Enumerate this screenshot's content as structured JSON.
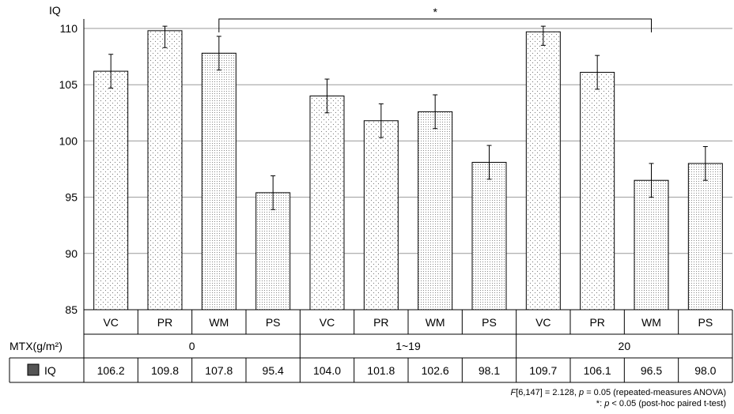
{
  "chart_data": {
    "type": "bar",
    "ylabel": "IQ",
    "ylim": [
      85,
      110
    ],
    "yticks": [
      85,
      90,
      95,
      100,
      105,
      110
    ],
    "grid": true,
    "categories": [
      "VC",
      "PR",
      "WM",
      "PS",
      "VC",
      "PR",
      "WM",
      "PS",
      "VC",
      "PR",
      "WM",
      "PS"
    ],
    "groups": [
      {
        "label": "0",
        "count": 4
      },
      {
        "label": "1~19",
        "count": 4
      },
      {
        "label": "20",
        "count": 4
      }
    ],
    "group_axis_label": "MTX(g/m²)",
    "series": [
      {
        "name": "IQ",
        "values": [
          106.2,
          109.8,
          107.8,
          95.4,
          104.0,
          101.8,
          102.6,
          98.1,
          109.7,
          106.1,
          96.5,
          98.0
        ],
        "value_labels": [
          "106.2",
          "109.8",
          "107.8",
          "95.4",
          "104.0",
          "101.8",
          "102.6",
          "98.1",
          "109.7",
          "106.1",
          "96.5",
          "98.0"
        ],
        "error": [
          1.5,
          1.5,
          1.5,
          1.5,
          1.5,
          1.5,
          1.5,
          1.5,
          1.2,
          1.5,
          1.5,
          1.5
        ],
        "color": "#555555"
      }
    ],
    "significance": {
      "from_index": 2,
      "to_index": 10,
      "label": "*"
    },
    "footnotes": [
      {
        "italic": "F",
        "text": "[6,147] = 2.128, ",
        "italic2": "p",
        "text2": " = 0.05 (repeated-measures ANOVA)"
      },
      {
        "italic": "",
        "text": "*: ",
        "italic2": "p",
        "text2": " < 0.05 (post-hoc paired t-test)"
      }
    ]
  }
}
